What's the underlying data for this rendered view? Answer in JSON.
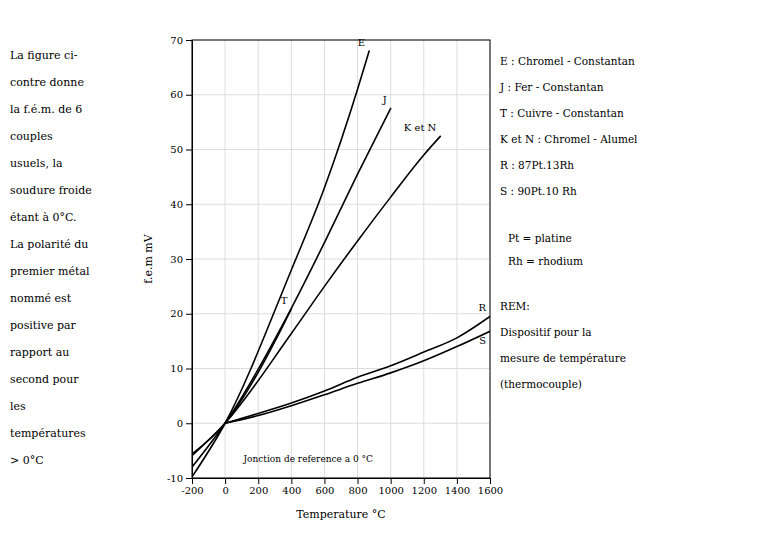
{
  "chart_data": {
    "type": "line",
    "xlabel": "Temperature °C",
    "ylabel": "f.e.m  mV",
    "xlim": [
      -200,
      1600
    ],
    "ylim": [
      -10,
      70
    ],
    "xticks": [
      -200,
      0,
      200,
      400,
      600,
      800,
      1000,
      1200,
      1400,
      1600
    ],
    "yticks": [
      -10,
      0,
      10,
      20,
      30,
      40,
      50,
      60,
      70
    ],
    "grid": true,
    "color": "#000000",
    "annotations": [
      "Jonction de reference a 0 °C"
    ],
    "notes": [
      [
        "E : Chromel - Constantan",
        "J : Fer - Constantan",
        "T : Cuivre - Constantan",
        "K et N : Chromel - Alumel",
        "R : 87Pt.13Rh",
        "S : 90Pt.10 Rh"
      ],
      [
        "Pt = platine",
        "Rh = rhodium"
      ],
      [
        "REM:",
        "Dispositif pour la",
        "mesure de température",
        "(thermocouple)"
      ]
    ],
    "text": [
      "La figure ci-",
      "contre donne",
      "la f.é.m. de 6",
      "couples",
      "usuels, la",
      "soudure froide",
      "étant à 0°C.",
      "La polarité du",
      "premier métal",
      "nommé est",
      "positive par",
      "rapport au",
      "second pour",
      "les",
      "températures",
      "> 0°C"
    ],
    "series": [
      {
        "name": "E",
        "x": [
          -200,
          0,
          400,
          600,
          800,
          870
        ],
        "values": [
          -9.8,
          0,
          28,
          43,
          61,
          68
        ]
      },
      {
        "name": "J",
        "x": [
          -200,
          0,
          400,
          600,
          800,
          1000
        ],
        "values": [
          -8.0,
          0,
          21,
          33,
          45.5,
          57.5
        ]
      },
      {
        "name": "K et N",
        "x": [
          -200,
          0,
          400,
          600,
          800,
          1000,
          1200,
          1300
        ],
        "values": [
          -5.9,
          0,
          16.4,
          25,
          33.3,
          41.3,
          49.0,
          52.4
        ]
      },
      {
        "name": "T",
        "x": [
          -200,
          0,
          200,
          300,
          400
        ],
        "values": [
          -5.6,
          0,
          9.3,
          14.9,
          20.9
        ]
      },
      {
        "name": "R",
        "x": [
          0,
          200,
          400,
          600,
          800,
          1000,
          1200,
          1400,
          1600
        ],
        "values": [
          0,
          1.8,
          3.7,
          5.9,
          8.4,
          10.5,
          13.0,
          15.6,
          19.5
        ]
      },
      {
        "name": "S",
        "x": [
          0,
          200,
          400,
          600,
          800,
          1000,
          1200,
          1400,
          1600
        ],
        "values": [
          0,
          1.4,
          3.2,
          5.2,
          7.3,
          9.2,
          11.4,
          14.0,
          16.8
        ]
      }
    ]
  }
}
